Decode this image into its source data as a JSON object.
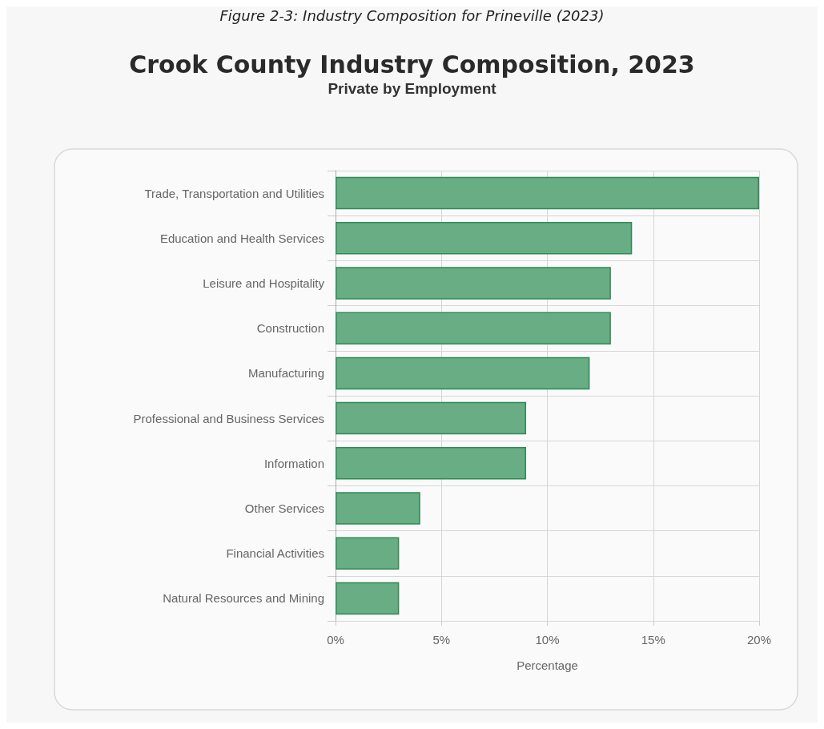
{
  "chart_data": {
    "type": "bar",
    "orientation": "horizontal",
    "title": "Crook County Industry Composition, 2023",
    "subtitle": "Private by Employment",
    "xlabel": "Percentage",
    "annotations": [
      "Figure 2-3: Industry Composition for Prineville (2023)"
    ],
    "categories": [
      "Trade, Transportation and Utilities",
      "Education and Health Services",
      "Leisure and Hospitality",
      "Construction",
      "Manufacturing",
      "Professional and Business Services",
      "Information",
      "Other Services",
      "Financial Activities",
      "Natural Resources and Mining"
    ],
    "values": [
      20,
      14,
      13,
      13,
      12,
      9,
      9,
      4,
      3,
      3
    ],
    "color": "#68ad83",
    "xlim": [
      0,
      20
    ],
    "xticks": [
      {
        "value": 0,
        "label": "0%"
      },
      {
        "value": 5,
        "label": "5%"
      },
      {
        "value": 10,
        "label": "10%"
      },
      {
        "value": 15,
        "label": "15%"
      },
      {
        "value": 20,
        "label": "20%"
      }
    ],
    "grid": true
  }
}
